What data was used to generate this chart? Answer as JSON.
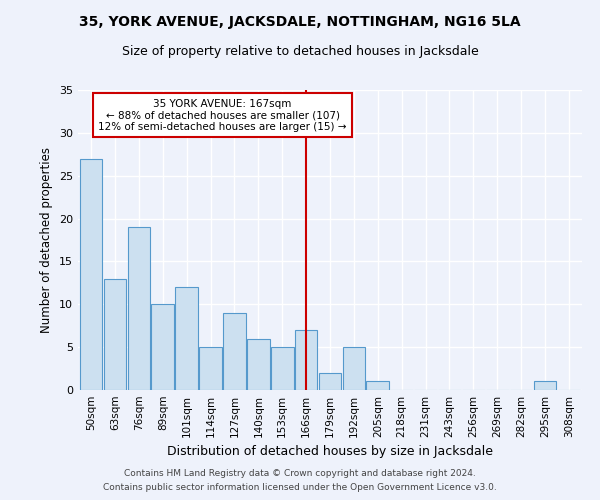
{
  "title": "35, YORK AVENUE, JACKSDALE, NOTTINGHAM, NG16 5LA",
  "subtitle": "Size of property relative to detached houses in Jacksdale",
  "xlabel": "Distribution of detached houses by size in Jacksdale",
  "ylabel": "Number of detached properties",
  "categories": [
    "50sqm",
    "63sqm",
    "76sqm",
    "89sqm",
    "101sqm",
    "114sqm",
    "127sqm",
    "140sqm",
    "153sqm",
    "166sqm",
    "179sqm",
    "192sqm",
    "205sqm",
    "218sqm",
    "231sqm",
    "243sqm",
    "256sqm",
    "269sqm",
    "282sqm",
    "295sqm",
    "308sqm"
  ],
  "values": [
    27,
    13,
    19,
    10,
    12,
    5,
    9,
    6,
    5,
    7,
    2,
    5,
    1,
    0,
    0,
    0,
    0,
    0,
    0,
    1,
    0
  ],
  "bar_color": "#cce0f0",
  "bar_edge_color": "#5599cc",
  "highlight_index": 9,
  "highlight_color": "#cc0000",
  "annotation_title": "35 YORK AVENUE: 167sqm",
  "annotation_line1": "← 88% of detached houses are smaller (107)",
  "annotation_line2": "12% of semi-detached houses are larger (15) →",
  "annotation_box_color": "#ffffff",
  "annotation_box_edge": "#cc0000",
  "ylim": [
    0,
    35
  ],
  "yticks": [
    0,
    5,
    10,
    15,
    20,
    25,
    30,
    35
  ],
  "background_color": "#eef2fb",
  "grid_color": "#ffffff",
  "footer1": "Contains HM Land Registry data © Crown copyright and database right 2024.",
  "footer2": "Contains public sector information licensed under the Open Government Licence v3.0."
}
